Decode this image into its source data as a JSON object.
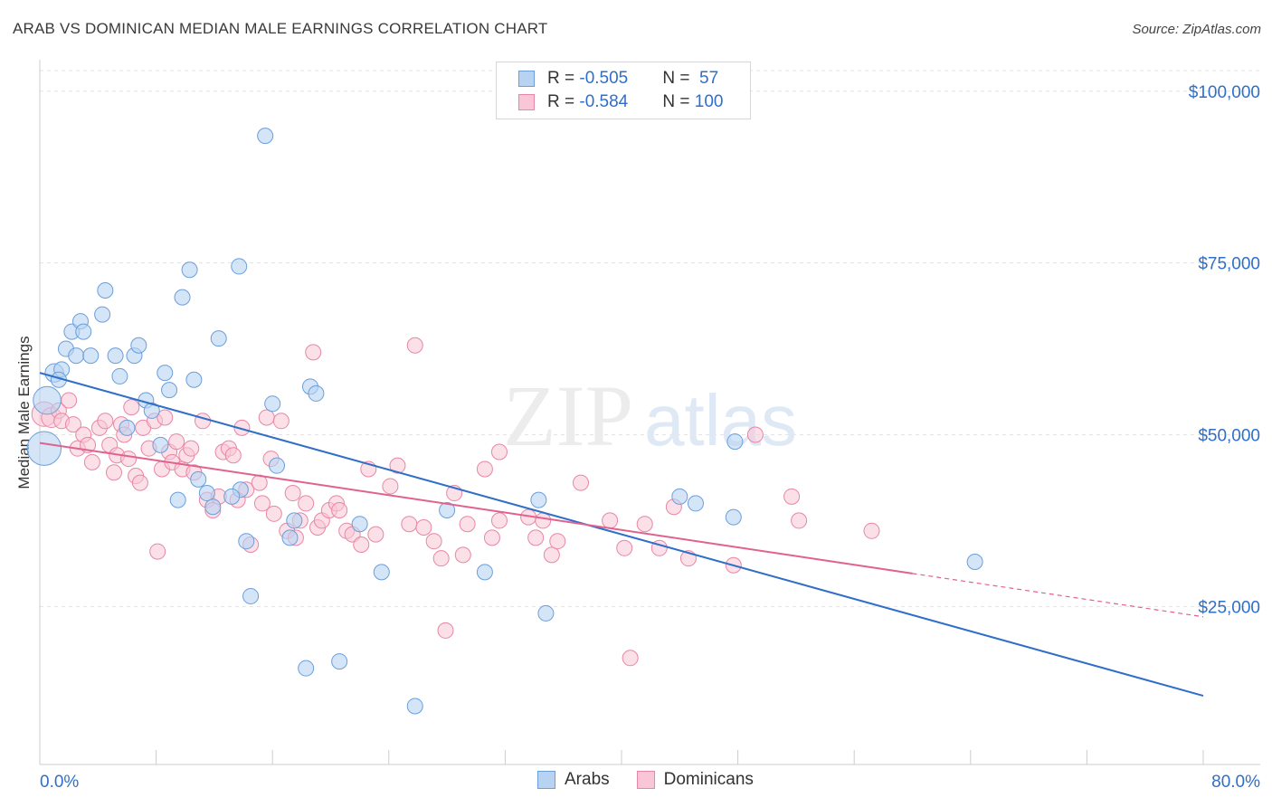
{
  "title": "ARAB VS DOMINICAN MEDIAN MALE EARNINGS CORRELATION CHART",
  "source": "Source: ZipAtlas.com",
  "legend": {
    "rows": [
      {
        "r_label": "R = ",
        "r_value": "-0.505",
        "n_label": "N = ",
        "n_value": " 57"
      },
      {
        "r_label": "R = ",
        "r_value": "-0.584",
        "n_label": "N = ",
        "n_value": "100"
      }
    ],
    "bottom": [
      "Arabs",
      "Dominicans"
    ]
  },
  "colors": {
    "arab_fill": "#b8d3f2",
    "arab_stroke": "#6b9edb",
    "arab_line": "#2f6fc8",
    "dom_fill": "#f8c6d6",
    "dom_stroke": "#e886a6",
    "dom_line": "#e0628e",
    "axis_label": "#2f6fc8",
    "grid": "#e3e3e3"
  },
  "chart_data": {
    "type": "scatter",
    "ylabel": "Median Male Earnings",
    "x_tick_labels": [
      "0.0%",
      "80.0%"
    ],
    "y_tick_labels": [
      "$100,000",
      "$75,000",
      "$50,000",
      "$25,000"
    ],
    "y_ticks": [
      100000,
      75000,
      50000,
      25000
    ],
    "xlim": [
      0,
      80
    ],
    "ylim": [
      2000,
      103000
    ],
    "series": [
      {
        "name": "Arabs",
        "points": [
          [
            0.3,
            48000,
            2.2
          ],
          [
            0.5,
            55000,
            1.8
          ],
          [
            1.0,
            59000,
            1.2
          ],
          [
            1.5,
            59500,
            1
          ],
          [
            1.8,
            62500,
            1
          ],
          [
            2.2,
            65000,
            1
          ],
          [
            2.8,
            66500,
            1
          ],
          [
            3.0,
            65000,
            1
          ],
          [
            2.5,
            61500,
            1
          ],
          [
            4.5,
            71000,
            1
          ],
          [
            4.3,
            67500,
            1
          ],
          [
            5.2,
            61500,
            1
          ],
          [
            5.5,
            58500,
            1
          ],
          [
            6.5,
            61500,
            1
          ],
          [
            6.8,
            63000,
            1
          ],
          [
            7.3,
            55000,
            1
          ],
          [
            7.7,
            53500,
            1
          ],
          [
            8.3,
            48500,
            1
          ],
          [
            8.6,
            59000,
            1
          ],
          [
            8.9,
            56500,
            1
          ],
          [
            9.5,
            40500,
            1
          ],
          [
            9.8,
            70000,
            1
          ],
          [
            10.3,
            74000,
            1
          ],
          [
            10.6,
            58000,
            1
          ],
          [
            10.9,
            43500,
            1
          ],
          [
            11.5,
            41500,
            1
          ],
          [
            11.9,
            39500,
            1
          ],
          [
            12.3,
            64000,
            1
          ],
          [
            13.7,
            74500,
            1
          ],
          [
            13.8,
            42000,
            1
          ],
          [
            14.2,
            34500,
            1
          ],
          [
            14.5,
            26500,
            1
          ],
          [
            15.5,
            93500,
            1
          ],
          [
            16.0,
            54500,
            1
          ],
          [
            16.3,
            45500,
            1
          ],
          [
            17.2,
            35000,
            1
          ],
          [
            17.5,
            37500,
            1
          ],
          [
            18.3,
            16000,
            1
          ],
          [
            18.6,
            57000,
            1
          ],
          [
            19.0,
            56000,
            1
          ],
          [
            20.6,
            17000,
            1
          ],
          [
            22.0,
            37000,
            1
          ],
          [
            23.5,
            30000,
            1
          ],
          [
            25.8,
            10500,
            1
          ],
          [
            28.0,
            39000,
            1
          ],
          [
            30.6,
            30000,
            1
          ],
          [
            34.3,
            40500,
            1
          ],
          [
            34.8,
            24000,
            1
          ],
          [
            44.0,
            41000,
            1
          ],
          [
            45.1,
            40000,
            1
          ],
          [
            47.7,
            38000,
            1
          ],
          [
            47.8,
            49000,
            1
          ],
          [
            64.3,
            31500,
            1
          ],
          [
            1.3,
            58000,
            1
          ],
          [
            3.5,
            61500,
            1
          ],
          [
            6.0,
            51000,
            1
          ],
          [
            13.2,
            41000,
            1
          ]
        ],
        "trend": {
          "x0": 0,
          "y0": 59000,
          "x1": 80,
          "y1": 12000
        }
      },
      {
        "name": "Dominicans",
        "points": [
          [
            0.3,
            53000,
            1.6
          ],
          [
            0.8,
            52500,
            1.3
          ],
          [
            1.3,
            53500,
            1
          ],
          [
            1.5,
            52000,
            1
          ],
          [
            2.0,
            55000,
            1
          ],
          [
            2.3,
            51500,
            1
          ],
          [
            2.6,
            48000,
            1
          ],
          [
            3.0,
            50000,
            1
          ],
          [
            3.3,
            48500,
            1
          ],
          [
            3.6,
            46000,
            1
          ],
          [
            4.1,
            51000,
            1
          ],
          [
            4.5,
            52000,
            1
          ],
          [
            4.8,
            48500,
            1
          ],
          [
            5.1,
            44500,
            1
          ],
          [
            5.3,
            47000,
            1
          ],
          [
            5.6,
            51500,
            1
          ],
          [
            5.8,
            50000,
            1
          ],
          [
            6.1,
            46500,
            1
          ],
          [
            6.3,
            54000,
            1
          ],
          [
            6.6,
            44000,
            1
          ],
          [
            6.9,
            43000,
            1
          ],
          [
            7.1,
            51000,
            1
          ],
          [
            7.5,
            48000,
            1
          ],
          [
            7.9,
            52000,
            1
          ],
          [
            8.1,
            33000,
            1
          ],
          [
            8.4,
            45000,
            1
          ],
          [
            8.6,
            52500,
            1
          ],
          [
            8.9,
            47500,
            1
          ],
          [
            9.1,
            46000,
            1
          ],
          [
            9.4,
            49000,
            1
          ],
          [
            9.8,
            45000,
            1
          ],
          [
            10.1,
            47000,
            1
          ],
          [
            10.4,
            48000,
            1
          ],
          [
            10.6,
            44500,
            1
          ],
          [
            11.2,
            52000,
            1
          ],
          [
            11.5,
            40500,
            1
          ],
          [
            11.9,
            39000,
            1
          ],
          [
            12.3,
            41000,
            1
          ],
          [
            12.6,
            47500,
            1
          ],
          [
            13.0,
            48000,
            1
          ],
          [
            13.3,
            47000,
            1
          ],
          [
            13.6,
            40500,
            1
          ],
          [
            13.9,
            51000,
            1
          ],
          [
            14.2,
            42000,
            1
          ],
          [
            14.5,
            34000,
            1
          ],
          [
            15.1,
            43000,
            1
          ],
          [
            15.3,
            40000,
            1
          ],
          [
            15.6,
            52500,
            1
          ],
          [
            15.9,
            46500,
            1
          ],
          [
            16.1,
            38500,
            1
          ],
          [
            16.6,
            52000,
            1
          ],
          [
            17.0,
            36000,
            1
          ],
          [
            17.4,
            41500,
            1
          ],
          [
            17.6,
            35000,
            1
          ],
          [
            17.9,
            37500,
            1
          ],
          [
            18.3,
            40000,
            1
          ],
          [
            18.8,
            62000,
            1
          ],
          [
            19.1,
            36500,
            1
          ],
          [
            19.4,
            37500,
            1
          ],
          [
            19.9,
            39000,
            1
          ],
          [
            20.4,
            40000,
            1
          ],
          [
            20.6,
            39000,
            1
          ],
          [
            21.1,
            36000,
            1
          ],
          [
            21.5,
            35500,
            1
          ],
          [
            22.1,
            34000,
            1
          ],
          [
            22.6,
            45000,
            1
          ],
          [
            23.1,
            35500,
            1
          ],
          [
            24.1,
            42500,
            1
          ],
          [
            24.6,
            45500,
            1
          ],
          [
            25.4,
            37000,
            1
          ],
          [
            25.8,
            63000,
            1
          ],
          [
            26.4,
            36500,
            1
          ],
          [
            27.1,
            34500,
            1
          ],
          [
            27.6,
            32000,
            1
          ],
          [
            27.9,
            21500,
            1
          ],
          [
            28.5,
            41500,
            1
          ],
          [
            29.1,
            32500,
            1
          ],
          [
            29.4,
            37000,
            1
          ],
          [
            30.6,
            45000,
            1
          ],
          [
            31.1,
            35000,
            1
          ],
          [
            31.6,
            47500,
            1
          ],
          [
            31.6,
            37500,
            1
          ],
          [
            33.6,
            38000,
            1
          ],
          [
            34.1,
            35000,
            1
          ],
          [
            34.6,
            37500,
            1
          ],
          [
            35.2,
            32500,
            1
          ],
          [
            35.6,
            34500,
            1
          ],
          [
            37.2,
            43000,
            1
          ],
          [
            39.2,
            37500,
            1
          ],
          [
            40.2,
            33500,
            1
          ],
          [
            40.6,
            17500,
            1
          ],
          [
            41.6,
            37000,
            1
          ],
          [
            42.6,
            33500,
            1
          ],
          [
            43.6,
            39500,
            1
          ],
          [
            44.6,
            32000,
            1
          ],
          [
            47.7,
            31000,
            1
          ],
          [
            49.2,
            50000,
            1
          ],
          [
            51.7,
            41000,
            1
          ],
          [
            52.2,
            37500,
            1
          ],
          [
            57.2,
            36000,
            1
          ]
        ],
        "trend": {
          "x0": 0,
          "y0": 48800,
          "x1": 60,
          "y1": 29800
        },
        "trend_dashed": {
          "x0": 60,
          "y0": 29800,
          "x1": 80,
          "y1": 23500
        }
      }
    ]
  }
}
